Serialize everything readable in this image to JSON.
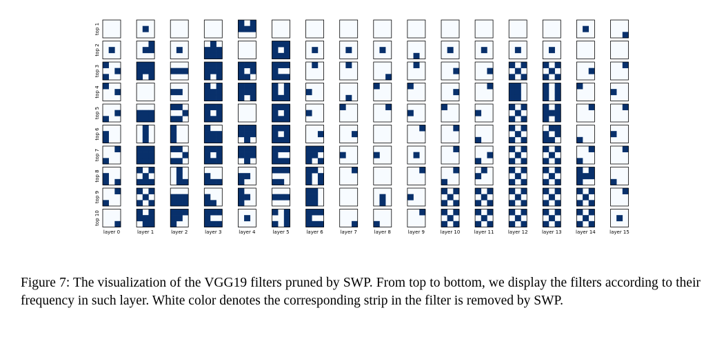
{
  "figure": {
    "row_labels": [
      "top 1",
      "top 2",
      "top 3",
      "top 4",
      "top 5",
      "top 6",
      "top 7",
      "top 8",
      "top 9",
      "top 10"
    ],
    "col_labels": [
      "layer 0",
      "layer 1",
      "layer 2",
      "layer 3",
      "layer 4",
      "layer 5",
      "layer 6",
      "layer 7",
      "layer 8",
      "layer 9",
      "layer 10",
      "layer 11",
      "layer 12",
      "layer 13",
      "layer 14",
      "layer 15"
    ],
    "filters": [
      [
        "000000000",
        "000010000",
        "000000000",
        "000000000",
        "101111000",
        "000000000",
        "000000000",
        "000000000",
        "000000000",
        "000000000",
        "000000000",
        "000000000",
        "000000000",
        "000000000",
        "000010000",
        "000000001"
      ],
      [
        "000010000",
        "001011000",
        "000010000",
        "010111111",
        "000000000",
        "111101111",
        "000010000",
        "000010000",
        "000010000",
        "000000010",
        "000010000",
        "000010000",
        "000010000",
        "000010000",
        "000000000",
        "000000000"
      ],
      [
        "100001100",
        "111111101",
        "000111000",
        "111111101",
        "111101110",
        "111100111",
        "010000000",
        "010000000",
        "000000001",
        "010000000",
        "000001000",
        "000001000",
        "101010101",
        "101010101",
        "000001000",
        "001000000"
      ],
      [
        "100001000",
        "000000000",
        "000110000",
        "101111111",
        "111111101",
        "101101111",
        "000100000",
        "000000010",
        "100000000",
        "100000000",
        "000001000",
        "001000000",
        "110110110",
        "101101101",
        "100000000",
        "000100000"
      ],
      [
        "000001100",
        "000111111",
        "110001110",
        "111101111",
        "000000000",
        "111101111",
        "000100000",
        "100000000",
        "001000000",
        "000100000",
        "100000000",
        "000100000",
        "101010101",
        "101111101",
        "001000000",
        "001000000"
      ],
      [
        "000100100",
        "010010010",
        "100100100",
        "100111111",
        "111111010",
        "111101111",
        "000001000",
        "000001000",
        "000000000",
        "001000000",
        "001000000",
        "000000100",
        "101010101",
        "011101110",
        "000000100",
        "000100000"
      ],
      [
        "001000100",
        "111111111",
        "110001110",
        "111101111",
        "111111010",
        "111100111",
        "111110101",
        "000100000",
        "000100000",
        "000010000",
        "001000000",
        "000001100",
        "101010101",
        "101010101",
        "001000100",
        "001000000"
      ],
      [
        "000100101",
        "101010111",
        "010010011",
        "000100111",
        "000110100",
        "111000110",
        "110101101",
        "001000000",
        "000000000",
        "001000000",
        "001000100",
        "010100000",
        "101010101",
        "101010101",
        "101111100",
        "000000100"
      ],
      [
        "001000100",
        "101010101",
        "000111111",
        "000100110",
        "100110100",
        "000111000",
        "110110110",
        "000000000",
        "000010010",
        "000100000",
        "101010101",
        "101010101",
        "101010101",
        "101010101",
        "101010101",
        "001000000"
      ],
      [
        "000000001",
        "101111011",
        "111110100",
        "111100111",
        "000010000",
        "101001101",
        "111100111",
        "000000001",
        "000000100",
        "001000000",
        "101010101",
        "101010101",
        "101010101",
        "101010101",
        "101010101",
        "000010000"
      ]
    ]
  },
  "caption": "Figure 7: The visualization of the VGG19 filters pruned by SWP. From top to bottom, we display the filters according to their frequency in such layer. White color denotes the corresponding strip in the filter is removed by SWP."
}
